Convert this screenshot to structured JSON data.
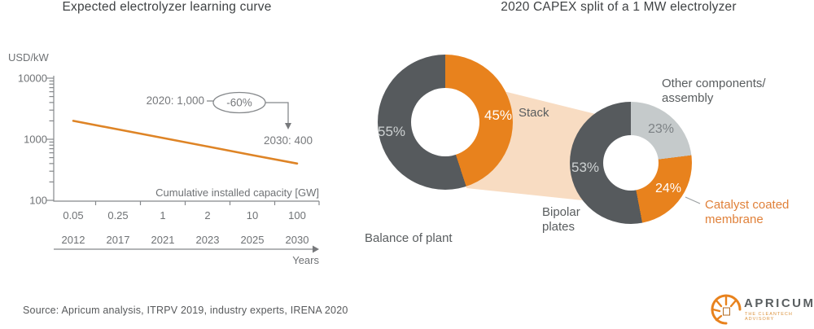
{
  "left_chart": {
    "title": "Expected electrolyzer learning curve",
    "y_axis_label": "USD/kW",
    "y_ticks": [
      "10000",
      "1000",
      "100"
    ],
    "x_axis_label": "Cumulative installed capacity [GW]",
    "x_ticks": [
      "0.05",
      "0.25",
      "1",
      "2",
      "10",
      "100"
    ],
    "year_ticks": [
      "2012",
      "2017",
      "2021",
      "2023",
      "2025",
      "2030"
    ],
    "years_label": "Years",
    "annotation": {
      "from": "2020: 1,000",
      "change": "-60%",
      "to": "2030: 400"
    }
  },
  "right_chart": {
    "title": "2020 CAPEX split of a 1 MW electrolyzer"
  },
  "footer": {
    "source": "Source: Apricum analysis, ITRPV 2019, industry experts, IRENA 2020",
    "logo_name": "APRICUM",
    "logo_tagline": "THE CLEANTECH ADVISORY"
  },
  "colors": {
    "orange": "#e8821d",
    "dark_slate": "#565a5d",
    "light_gray": "#c5cacb",
    "band": "#f8dcc2",
    "line_orange": "#de8426",
    "leader_gray": "#9ca0a2"
  },
  "chart_data": [
    {
      "type": "line",
      "title": "Expected electrolyzer learning curve",
      "xlabel": "Cumulative installed capacity [GW]",
      "ylabel": "USD/kW",
      "yscale": "log",
      "ylim": [
        100,
        10000
      ],
      "x_capacity_gw": [
        0.05,
        0.25,
        1,
        2,
        10,
        100
      ],
      "x_years": [
        2012,
        2017,
        2021,
        2023,
        2025,
        2030
      ],
      "values_usd_per_kw": [
        2000,
        1450,
        1050,
        760,
        550,
        400
      ],
      "annotations": [
        "2020: 1,000",
        "-60%",
        "2030: 400"
      ]
    },
    {
      "type": "pie",
      "variant": "donut",
      "title": "2020 CAPEX split of a 1 MW electrolyzer",
      "segments": [
        {
          "name": "Stack",
          "value": 45,
          "label": "45%",
          "color": "#e8821d"
        },
        {
          "name": "Balance of plant",
          "value": 55,
          "label": "55%",
          "color": "#565a5d"
        }
      ]
    },
    {
      "type": "pie",
      "variant": "donut",
      "segments": [
        {
          "name": "Other components/ assembly",
          "value": 23,
          "label": "23%",
          "color": "#c5cacb"
        },
        {
          "name": "Catalyst coated membrane",
          "value": 24,
          "label": "24%",
          "color": "#e8821d"
        },
        {
          "name": "Bipolar plates",
          "value": 53,
          "label": "53%",
          "color": "#565a5d"
        }
      ]
    }
  ]
}
